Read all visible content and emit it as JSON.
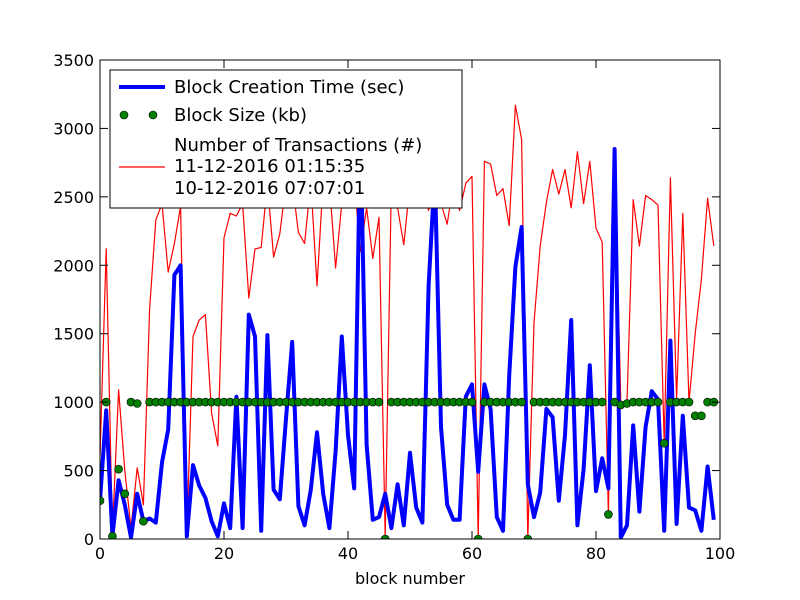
{
  "chart_data": {
    "type": "line",
    "xlabel": "block number",
    "ylabel": "",
    "xlim": [
      0,
      100
    ],
    "ylim": [
      0,
      3500
    ],
    "xticks": [
      0,
      20,
      40,
      60,
      80,
      100
    ],
    "yticks": [
      0,
      500,
      1000,
      1500,
      2000,
      2500,
      3000,
      3500
    ],
    "legend_position": "upper-left",
    "legend_lines": {
      "creation": "Block Creation Time (sec)",
      "size": "Block Size (kb)",
      "tx": "Number of Transactions (#)",
      "date1": "11-12-2016 01:15:35",
      "date2": "10-12-2016 07:07:01"
    },
    "series": [
      {
        "name": "Block Creation Time (sec)",
        "style": "thick-line",
        "color": "#0000ff",
        "x": [
          0,
          1,
          2,
          3,
          4,
          5,
          6,
          7,
          8,
          9,
          10,
          11,
          12,
          13,
          14,
          15,
          16,
          17,
          18,
          19,
          20,
          21,
          22,
          23,
          24,
          25,
          26,
          27,
          28,
          29,
          30,
          31,
          32,
          33,
          34,
          35,
          36,
          37,
          38,
          39,
          40,
          41,
          42,
          43,
          44,
          45,
          46,
          47,
          48,
          49,
          50,
          51,
          52,
          53,
          54,
          55,
          56,
          57,
          58,
          59,
          60,
          61,
          62,
          63,
          64,
          65,
          66,
          67,
          68,
          69,
          70,
          71,
          72,
          73,
          74,
          75,
          76,
          77,
          78,
          79,
          80,
          81,
          82,
          83,
          84,
          85,
          86,
          87,
          88,
          89,
          90,
          91,
          92,
          93,
          94,
          95,
          96,
          97,
          98,
          99
        ],
        "y": [
          280,
          940,
          20,
          430,
          250,
          10,
          330,
          130,
          150,
          120,
          560,
          800,
          1930,
          2000,
          20,
          540,
          390,
          300,
          130,
          20,
          260,
          80,
          1040,
          80,
          1640,
          1480,
          60,
          1490,
          360,
          290,
          880,
          1440,
          240,
          100,
          360,
          780,
          330,
          80,
          640,
          1480,
          760,
          370,
          3020,
          690,
          140,
          160,
          330,
          80,
          400,
          100,
          630,
          230,
          120,
          1850,
          2680,
          820,
          250,
          140,
          140,
          1040,
          1130,
          490,
          1130,
          950,
          160,
          60,
          1190,
          1990,
          2280,
          400,
          160,
          340,
          950,
          890,
          280,
          760,
          1600,
          100,
          510,
          1270,
          350,
          590,
          370,
          2850,
          10,
          100,
          830,
          200,
          820,
          1080,
          1020,
          60,
          1450,
          110,
          900,
          230,
          210,
          60,
          530,
          140
        ]
      },
      {
        "name": "Block Size (kb)",
        "style": "dots",
        "color": "#008000",
        "x": [
          0,
          1,
          2,
          3,
          4,
          5,
          6,
          7,
          8,
          9,
          10,
          11,
          12,
          13,
          14,
          15,
          16,
          17,
          18,
          19,
          20,
          21,
          22,
          23,
          24,
          25,
          26,
          27,
          28,
          29,
          30,
          31,
          32,
          33,
          34,
          35,
          36,
          37,
          38,
          39,
          40,
          41,
          42,
          43,
          44,
          45,
          46,
          47,
          48,
          49,
          50,
          51,
          52,
          53,
          54,
          55,
          56,
          57,
          58,
          59,
          60,
          61,
          62,
          63,
          64,
          65,
          66,
          67,
          68,
          69,
          70,
          71,
          72,
          73,
          74,
          75,
          76,
          77,
          78,
          79,
          80,
          81,
          82,
          83,
          84,
          85,
          86,
          87,
          88,
          89,
          90,
          91,
          92,
          93,
          94,
          95,
          96,
          97,
          98,
          99
        ],
        "y": [
          280,
          1000,
          20,
          510,
          330,
          1000,
          990,
          130,
          1000,
          1000,
          1000,
          1000,
          1000,
          1000,
          1000,
          1000,
          1000,
          1000,
          1000,
          1000,
          1000,
          1000,
          1000,
          1000,
          1000,
          1000,
          1000,
          1000,
          1000,
          1000,
          1000,
          1000,
          1000,
          1000,
          1000,
          1000,
          1000,
          1000,
          1000,
          1000,
          1000,
          1000,
          1000,
          1000,
          1000,
          1000,
          0,
          1000,
          1000,
          1000,
          1000,
          1000,
          1000,
          1000,
          1000,
          1000,
          1000,
          1000,
          1000,
          1000,
          1000,
          0,
          1000,
          1000,
          1000,
          1000,
          1000,
          1000,
          1000,
          0,
          1000,
          1000,
          1000,
          1000,
          1000,
          1000,
          1000,
          1000,
          1000,
          1000,
          1000,
          1000,
          180,
          1000,
          980,
          990,
          1000,
          1000,
          1000,
          1000,
          1000,
          700,
          1000,
          1000,
          1000,
          1000,
          900,
          900,
          1000,
          1000
        ]
      },
      {
        "name": "Number of Transactions (#)",
        "style": "thin-line",
        "color": "#ff0000",
        "x": [
          0,
          1,
          2,
          3,
          4,
          5,
          6,
          7,
          8,
          9,
          10,
          11,
          12,
          13,
          14,
          15,
          16,
          17,
          18,
          19,
          20,
          21,
          22,
          23,
          24,
          25,
          26,
          27,
          28,
          29,
          30,
          31,
          32,
          33,
          34,
          35,
          36,
          37,
          38,
          39,
          40,
          41,
          42,
          43,
          44,
          45,
          46,
          47,
          48,
          49,
          50,
          51,
          52,
          53,
          54,
          55,
          56,
          57,
          58,
          59,
          60,
          61,
          62,
          63,
          64,
          65,
          66,
          67,
          68,
          69,
          70,
          71,
          72,
          73,
          74,
          75,
          76,
          77,
          78,
          79,
          80,
          81,
          82,
          83,
          84,
          85,
          86,
          87,
          88,
          89,
          90,
          91,
          92,
          93,
          94,
          95,
          96,
          97,
          98,
          99
        ],
        "y": [
          600,
          2120,
          40,
          1090,
          500,
          80,
          520,
          250,
          1680,
          2330,
          2450,
          1950,
          2160,
          2430,
          30,
          1480,
          1600,
          1640,
          920,
          680,
          2200,
          2380,
          2360,
          2450,
          1760,
          2120,
          2130,
          2600,
          2060,
          2230,
          2600,
          2610,
          2240,
          2160,
          2610,
          1850,
          2620,
          2600,
          1980,
          2450,
          2610,
          2620,
          2100,
          2420,
          2050,
          2350,
          10,
          2620,
          2420,
          2150,
          2600,
          2600,
          2600,
          2400,
          2620,
          2450,
          2300,
          2600,
          2400,
          2600,
          2650,
          0,
          2760,
          2740,
          2510,
          2560,
          2290,
          3170,
          2920,
          0,
          1580,
          2140,
          2460,
          2700,
          2520,
          2700,
          2420,
          2830,
          2450,
          2760,
          2270,
          2170,
          180,
          2830,
          1000,
          1000,
          2480,
          2140,
          2510,
          2480,
          2440,
          700,
          2640,
          1020,
          2380,
          1000,
          1500,
          1900,
          2490,
          2140
        ]
      }
    ]
  }
}
